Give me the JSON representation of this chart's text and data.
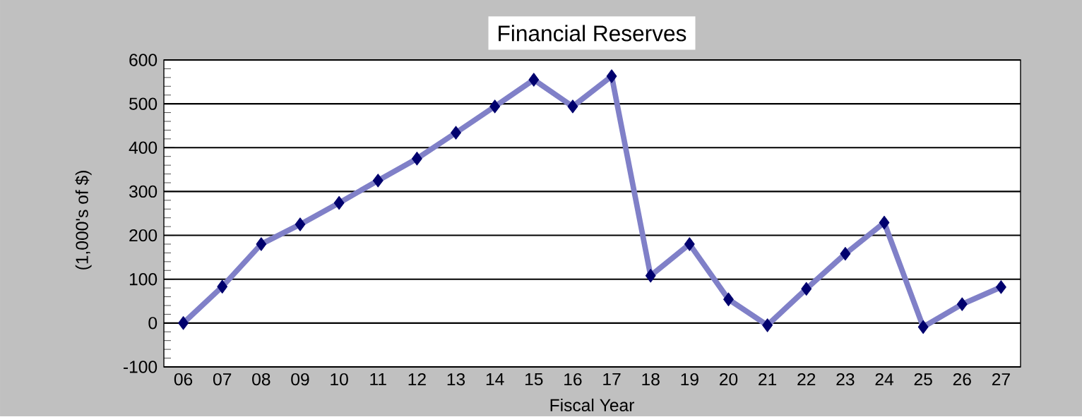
{
  "chart_data": {
    "type": "line",
    "title": "Financial Reserves",
    "xlabel": "Fiscal Year",
    "ylabel": "(1,000's of $)",
    "categories": [
      "06",
      "07",
      "08",
      "09",
      "10",
      "11",
      "12",
      "13",
      "14",
      "15",
      "16",
      "17",
      "18",
      "19",
      "20",
      "21",
      "22",
      "23",
      "24",
      "25",
      "26",
      "27"
    ],
    "series": [
      {
        "color": "#8080c8",
        "values": [
          0,
          83,
          180,
          225,
          274,
          325,
          375,
          434,
          494,
          555,
          494,
          563,
          108,
          180,
          54,
          -5,
          78,
          158,
          229,
          -9,
          43,
          82
        ]
      }
    ],
    "ylim": [
      -100,
      600
    ],
    "yticks": [
      -100,
      0,
      100,
      200,
      300,
      400,
      500,
      600
    ],
    "grid": "y",
    "marker": "diamond",
    "line_style": "solid"
  }
}
